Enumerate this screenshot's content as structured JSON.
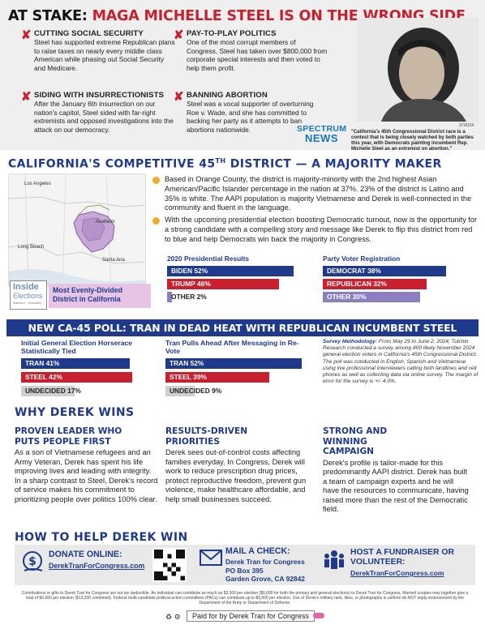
{
  "header": {
    "prefix": "AT STAKE:",
    "headline": "MAGA MICHELLE STEEL IS ON THE WRONG SIDE"
  },
  "issues": [
    {
      "title": "CUTTING SOCIAL SECURITY",
      "text": "Steel has supported extreme Republican plans to raise taxes on nearly every middle class American while phasing out Social Security and Medicare."
    },
    {
      "title": "PAY-TO-PLAY POLITICS",
      "text": "One of the most corrupt members of Congress, Steel has taken over $800,000 from corporate special interests and then voted to help them profit."
    },
    {
      "title": "SIDING WITH INSURRECTIONISTS",
      "text": "After the January 6th insurrection on our nation's capitol, Steel sided with far-right extremists and opposed investigations into the attack on our democracy."
    },
    {
      "title": "BANNING ABORTION",
      "text": "Steel was a vocal supporter of overturning Roe v. Wade, and she has committed to backing her party as it attempts to ban abortions nationwide."
    }
  ],
  "news": {
    "date": "2/16/24",
    "outlet_top": "SPECTRUM",
    "outlet_bottom": "NEWS",
    "quote": "\"California's 45th Congressional District race is a contest that is being closely watched by both parties this year, with Democrats painting incumbent Rep. Michelle Steel as an extremist on abortion.\""
  },
  "district": {
    "title": "CALIFORNIA'S COMPETITIVE 45",
    "title_sup": "TH",
    "title_rest": " DISTRICT — A MAJORITY MAKER",
    "bullets": [
      "Based in Orange County, the district is majority-minority with the 2nd highest Asian American/Pacific Islander percentage in the nation at 37%.  23% of the district is Latino and 35% is white.  The AAPI population is majority Vietnamese and Derek is well-connected in the community and fluent in the language.",
      "With the upcoming presidential election boosting Democratic turnout, now is the opportunity for a strong candidate with a compelling story and message like Derek to flip this district from red to blue and help Democrats win back the majority in Congress."
    ],
    "map_labels": [
      "Los Angeles",
      "Long Beach",
      "Anaheim",
      "Santa Ana"
    ],
    "badge_top": "Inside",
    "badge_bottom": "Elections",
    "badge_sub": "Nathan L. Gonzales",
    "badge_text": "Most Evenly-Divided District in California",
    "results_title": "2020 Presidential Results",
    "registration_title": "Party Voter Registration"
  },
  "poll": {
    "banner": "NEW CA-45 POLL: TRAN IN DEAD HEAT WITH REPUBLICAN INCUMBENT STEEL",
    "initial_title": "Initial General Election Horserace Statistically Tied",
    "reelect_title": "Tran Pulls Ahead After Messaging in Re-Vote",
    "methodology_label": "Survey Methodology:",
    "methodology": " From May 29 to June 2, 2024, Tulchin Research conducted a survey among 800 likely November 2024 general election voters in California's 45th Congressional District. The poll was conducted in English, Spanish and Vietnamese using live professional interviewers calling both landlines and cell phones as well as collecting data via online survey.  The margin of error for the survey is +/- 4.0%."
  },
  "chart_data": [
    {
      "type": "bar",
      "title": "2020 Presidential Results",
      "categories": [
        "BIDEN",
        "TRUMP",
        "OTHER"
      ],
      "values": [
        52,
        46,
        2
      ],
      "unit": "%"
    },
    {
      "type": "bar",
      "title": "Party Voter Registration",
      "categories": [
        "DEMOCRAT",
        "REPUBLICAN",
        "OTHER"
      ],
      "values": [
        38,
        32,
        30
      ],
      "unit": "%"
    },
    {
      "type": "bar",
      "title": "Initial General Election Horserace Statistically Tied",
      "categories": [
        "TRAN",
        "STEEL",
        "UNDECIDED"
      ],
      "values": [
        41,
        42,
        17
      ],
      "unit": "%"
    },
    {
      "type": "bar",
      "title": "Tran Pulls Ahead After Messaging in Re-Vote",
      "categories": [
        "TRAN",
        "STEEL",
        "UNDECIDED"
      ],
      "values": [
        52,
        39,
        9
      ],
      "unit": "%"
    }
  ],
  "bars": {
    "biden": "BIDEN 52%",
    "trump": "TRUMP 46%",
    "other_p": "OTHER 2%",
    "dem": "DEMOCRAT 38%",
    "rep": "REPUBLICAN 32%",
    "other_r": "OTHER 30%",
    "tran1": "TRAN 41%",
    "steel1": "STEEL 42%",
    "und1": "UNDECIDED 17%",
    "tran2": "TRAN 52%",
    "steel2": "STEEL 39%",
    "und2": "UNDECIDED 9%"
  },
  "colors": {
    "navy": "#1f3a8a",
    "red": "#c8202f",
    "purple": "#8b7fc2",
    "gray": "#cfcfcf",
    "pink": "#e7c4e6",
    "gold": "#f0a928"
  },
  "why": {
    "title": "WHY DEREK WINS",
    "columns": [
      {
        "heading": "PROVEN LEADER WHO PUTS PEOPLE FIRST",
        "text": "As a son of Vietnamese refugees and an Army Veteran, Derek has spent his life improving lives and leading with integrity.  In a sharp contrast to Steel, Derek's record of service makes his commitment to prioritizing people over politics 100% clear."
      },
      {
        "heading": "RESULTS-DRIVEN PRIORITIES",
        "text": "Derek sees out-of-control costs affecting families everyday.  In Congress, Derek will work to reduce prescription drug prices, protect reproductive freedom, prevent gun violence, make healthcare affordable, and help small businesses succeed."
      },
      {
        "heading": "STRONG AND WINNING CAMPAIGN",
        "text": "Derek's profile is tailor-made for this predominantly AAPI district.  Derek has built a team of campaign experts and he will have the resources to communicate, having raised more than the rest of the Democratic field."
      }
    ]
  },
  "help": {
    "title": "HOW TO HELP DEREK WIN",
    "donate_title": "DONATE ONLINE:",
    "donate_link": "DerekTranForCongress.com",
    "mail_title": "MAIL A CHECK:",
    "mail_lines": [
      "Derek Tran for Congress",
      "PO Box 395",
      "Garden Grove, CA 92842"
    ],
    "host_title": "HOST A FUNDRAISER OR VOLUNTEER:",
    "host_link": "DerekTranForCongress.com"
  },
  "footer": {
    "disclaimer": "Contributions or gifts to Derek Tran for Congress are not tax deductible. An individual can contribute as much as $3,300 per election ($6,600 for both the primary and general elections) to Derek Tran for Congress. Married couples may together give a total of $6,600 per election ($13,200 combined). Federal multi-candidate political action committees (PACs) can contribute up to $5,000 per election. Use of Derek's military rank, titles, or photographs in uniform do NOT imply endorsement by the Department of the Army or Department of Defense.",
    "paid_for": "Paid for by Derek Tran for Congress"
  }
}
